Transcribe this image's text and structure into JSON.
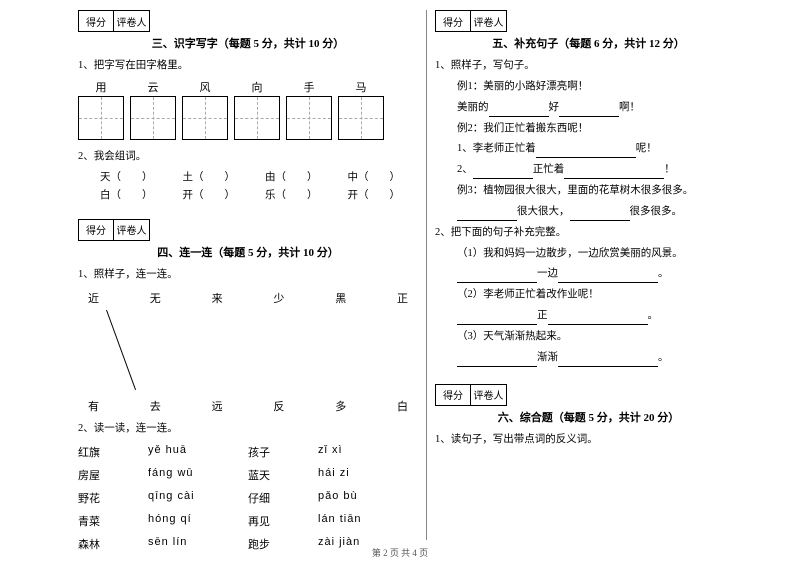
{
  "scorebox": {
    "score": "得分",
    "reviewer": "评卷人"
  },
  "s3": {
    "title": "三、识字写字（每题 5 分，共计 10 分）",
    "q1": "1、把字写在田字格里。",
    "chars": [
      "用",
      "云",
      "风",
      "向",
      "手",
      "马"
    ],
    "q2": "2、我会组词。",
    "row1": [
      "天（　　）",
      "土（　　）",
      "由（　　）",
      "中（　　）"
    ],
    "row2": [
      "白（　　）",
      "开（　　）",
      "乐（　　）",
      "开（　　）"
    ]
  },
  "s4": {
    "title": "四、连一连（每题 5 分，共计 10 分）",
    "q1": "1、照样子，连一连。",
    "top": [
      "近",
      "无",
      "来",
      "少",
      "黑",
      "正"
    ],
    "bottom": [
      "有",
      "去",
      "远",
      "反",
      "多",
      "白"
    ],
    "q2": "2、读一读，连一连。",
    "pairs": [
      [
        "红旗",
        "yě huā",
        "孩子",
        "zǐ xì"
      ],
      [
        "房屋",
        "fánɡ wū",
        "蓝天",
        "hái zi"
      ],
      [
        "野花",
        "qīnɡ cài",
        "仔细",
        "pǎo bù"
      ],
      [
        "青菜",
        "hónɡ qí",
        "再见",
        "lán tiān"
      ],
      [
        "森林",
        "sēn lín",
        "跑步",
        "zài jiàn"
      ]
    ]
  },
  "s5": {
    "title": "五、补充句子（每题 6 分，共计 12 分）",
    "q1": "1、照样子，写句子。",
    "ex1": "例1：美丽的小路好漂亮啊！",
    "l1a": "美丽的",
    "l1b": "好",
    "l1c": "啊！",
    "ex2": "例2：我们正忙着搬东西呢！",
    "l2": "1、李老师正忙着",
    "l2b": "呢！",
    "l3": "2、",
    "l3b": "正忙着",
    "l3c": "！",
    "ex3": "例3：植物园很大很大，里面的花草树木很多很多。",
    "l4a": "很大很大，",
    "l4b": "很多很多。",
    "q2": "2、把下面的句子补充完整。",
    "q2_1": "（1）我和妈妈一边散步，一边欣赏美丽的风景。",
    "q2_1b": "一边",
    "q2_1c": "。",
    "q2_2": "（2）李老师正忙着改作业呢！",
    "q2_2b": "正",
    "q2_2c": "。",
    "q2_3": "（3）天气渐渐热起来。",
    "q2_3b": "渐渐",
    "q2_3c": "。"
  },
  "s6": {
    "title": "六、综合题（每题 5 分，共计 20 分）",
    "q1": "1、读句子，写出带点词的反义词。"
  },
  "footer": "第 2 页 共 4 页"
}
